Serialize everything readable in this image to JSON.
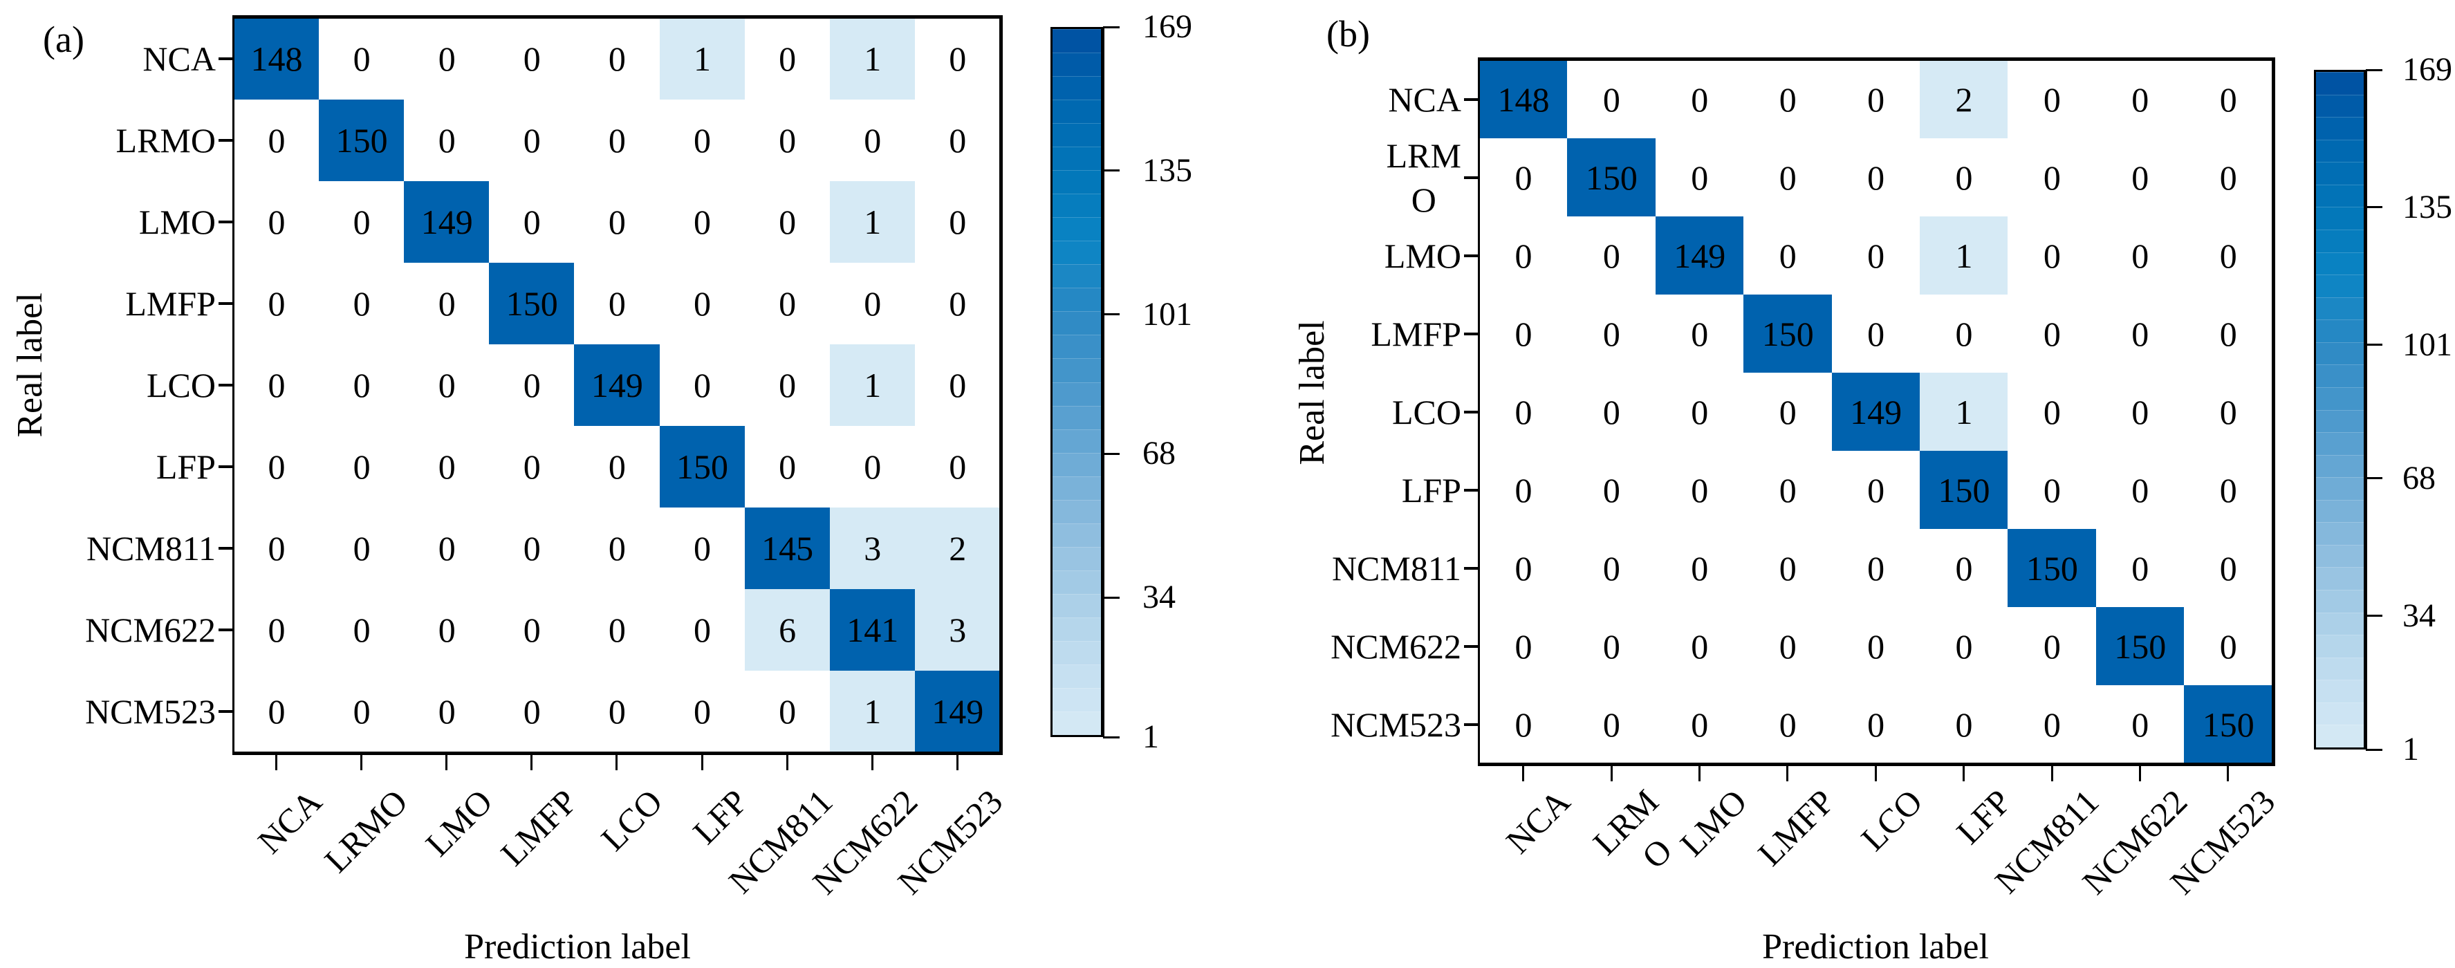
{
  "colors": {
    "high": "#0062ae",
    "low": "#d6eaf5",
    "zero": "#ffffff",
    "colorbar_stops": [
      "#d6eaf5",
      "#c3def0",
      "#a7cde6",
      "#8abbdd",
      "#6aa9d5",
      "#4897cb",
      "#2b89c4",
      "#0a84c4",
      "#0275b8",
      "#0066b0",
      "#004fa0"
    ]
  },
  "chart_data": [
    {
      "type": "heatmap",
      "panel": "(a)",
      "xlabel": "Prediction label",
      "ylabel": "Real label",
      "row_labels": [
        "NCA",
        "LRMO",
        "LMO",
        "LMFP",
        "LCO",
        "LFP",
        "NCM811",
        "NCM622",
        "NCM523"
      ],
      "col_labels": [
        "NCA",
        "LRMO",
        "LMO",
        "LMFP",
        "LCO",
        "LFP",
        "NCM811",
        "NCM622",
        "NCM523"
      ],
      "values": [
        [
          148,
          0,
          0,
          0,
          0,
          1,
          0,
          1,
          0
        ],
        [
          0,
          150,
          0,
          0,
          0,
          0,
          0,
          0,
          0
        ],
        [
          0,
          0,
          149,
          0,
          0,
          0,
          0,
          1,
          0
        ],
        [
          0,
          0,
          0,
          150,
          0,
          0,
          0,
          0,
          0
        ],
        [
          0,
          0,
          0,
          0,
          149,
          0,
          0,
          1,
          0
        ],
        [
          0,
          0,
          0,
          0,
          0,
          150,
          0,
          0,
          0
        ],
        [
          0,
          0,
          0,
          0,
          0,
          0,
          145,
          3,
          2
        ],
        [
          0,
          0,
          0,
          0,
          0,
          0,
          6,
          141,
          3
        ],
        [
          0,
          0,
          0,
          0,
          0,
          0,
          0,
          1,
          149
        ]
      ],
      "colorbar": {
        "range": [
          1,
          169
        ],
        "ticks": [
          "169",
          "135",
          "101",
          "68",
          "34",
          "1"
        ],
        "tick_values": [
          169,
          135,
          101,
          68,
          34,
          1
        ],
        "bands": 30
      }
    },
    {
      "type": "heatmap",
      "panel": "(b)",
      "xlabel": "Prediction label",
      "ylabel": "Real label",
      "row_labels": [
        "NCA",
        "LRM\nO",
        "LMO",
        "LMFP",
        "LCO",
        "LFP",
        "NCM811",
        "NCM622",
        "NCM523"
      ],
      "col_labels": [
        "NCA",
        "LRM\nO",
        "LMO",
        "LMFP",
        "LCO",
        "LFP",
        "NCM811",
        "NCM622",
        "NCM523"
      ],
      "values": [
        [
          148,
          0,
          0,
          0,
          0,
          2,
          0,
          0,
          0
        ],
        [
          0,
          150,
          0,
          0,
          0,
          0,
          0,
          0,
          0
        ],
        [
          0,
          0,
          149,
          0,
          0,
          1,
          0,
          0,
          0
        ],
        [
          0,
          0,
          0,
          150,
          0,
          0,
          0,
          0,
          0
        ],
        [
          0,
          0,
          0,
          0,
          149,
          1,
          0,
          0,
          0
        ],
        [
          0,
          0,
          0,
          0,
          0,
          150,
          0,
          0,
          0
        ],
        [
          0,
          0,
          0,
          0,
          0,
          0,
          150,
          0,
          0
        ],
        [
          0,
          0,
          0,
          0,
          0,
          0,
          0,
          150,
          0
        ],
        [
          0,
          0,
          0,
          0,
          0,
          0,
          0,
          0,
          150
        ]
      ],
      "colorbar": {
        "range": [
          1,
          169
        ],
        "ticks": [
          "169",
          "135",
          "101",
          "68",
          "34",
          "1"
        ],
        "tick_values": [
          169,
          135,
          101,
          68,
          34,
          1
        ],
        "bands": 30
      }
    }
  ]
}
